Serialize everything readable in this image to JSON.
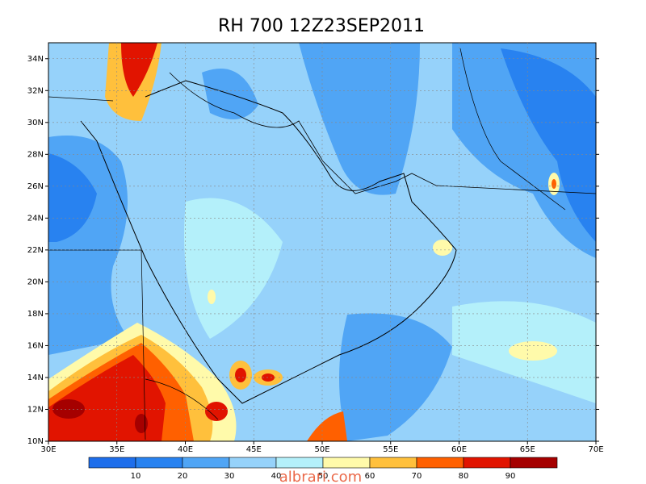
{
  "title": "RH 700 12Z23SEP2011",
  "lat_labels": [
    "10N",
    "12N",
    "14N",
    "16N",
    "18N",
    "20N",
    "22N",
    "24N",
    "26N",
    "28N",
    "30N",
    "32N",
    "34N"
  ],
  "lon_labels": [
    "30E",
    "35E",
    "40E",
    "45E",
    "50E",
    "55E",
    "60E",
    "65E",
    "70E"
  ],
  "colorbar": {
    "labels": [
      10,
      20,
      30,
      40,
      50,
      60,
      70,
      80,
      90
    ],
    "colors": [
      "#1e6eeb",
      "#2882f0",
      "#50a5f5",
      "#96d2fa",
      "#b4f0fa",
      "#fffaaa",
      "#ffc03c",
      "#ff6000",
      "#e11400",
      "#a50000"
    ]
  },
  "watermark": "albrari.com"
}
